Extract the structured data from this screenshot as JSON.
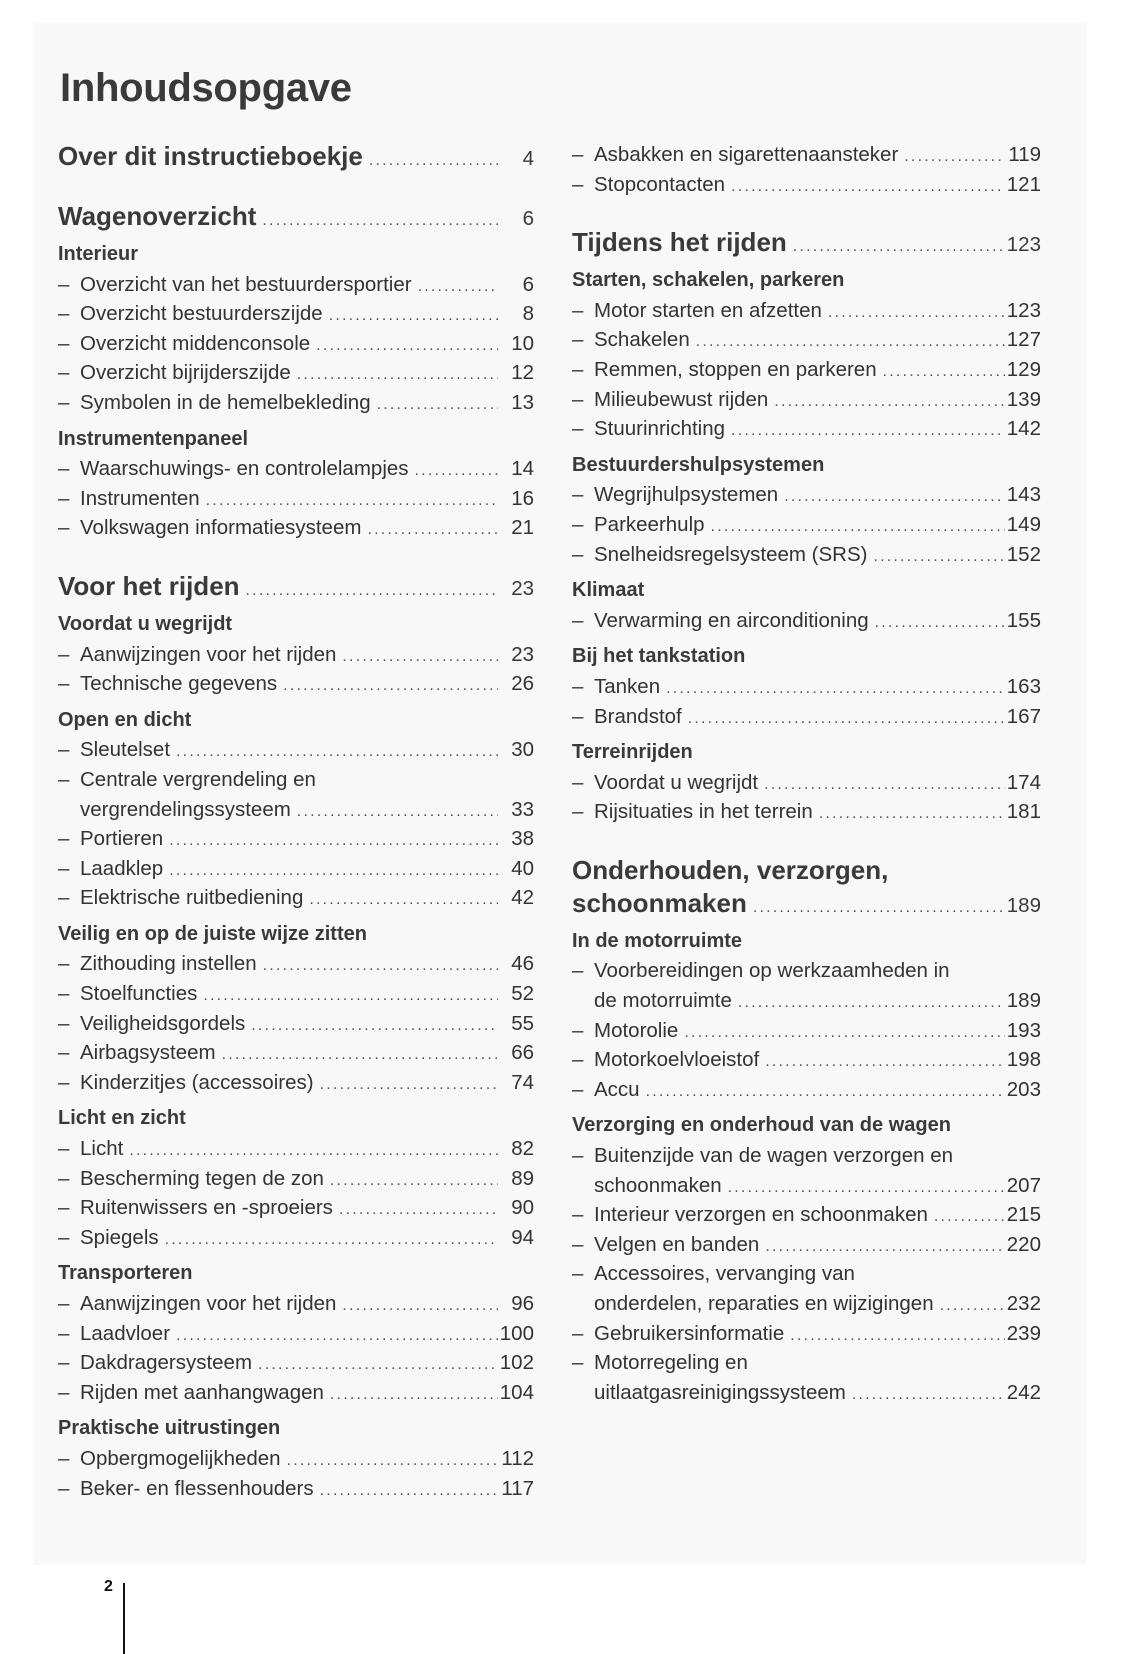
{
  "title": "Inhoudsopgave",
  "page_number": "2",
  "columns": [
    [
      {
        "type": "major",
        "lines": [
          "Over dit instructieboekje"
        ],
        "page": "4"
      },
      {
        "type": "major",
        "lines": [
          "Wagenoverzicht"
        ],
        "page": "6"
      },
      {
        "type": "sub",
        "text": "Interieur"
      },
      {
        "type": "item",
        "lines": [
          "Overzicht van het bestuurdersportier"
        ],
        "page": "6"
      },
      {
        "type": "item",
        "lines": [
          "Overzicht bestuurderszijde"
        ],
        "page": "8"
      },
      {
        "type": "item",
        "lines": [
          "Overzicht middenconsole"
        ],
        "page": "10"
      },
      {
        "type": "item",
        "lines": [
          "Overzicht bijrijderszijde"
        ],
        "page": "12"
      },
      {
        "type": "item",
        "lines": [
          "Symbolen in de hemelbekleding"
        ],
        "page": "13"
      },
      {
        "type": "sub",
        "text": "Instrumentenpaneel"
      },
      {
        "type": "item",
        "lines": [
          "Waarschuwings- en controlelampjes"
        ],
        "page": "14"
      },
      {
        "type": "item",
        "lines": [
          "Instrumenten"
        ],
        "page": "16"
      },
      {
        "type": "item",
        "lines": [
          "Volkswagen informatiesysteem"
        ],
        "page": "21"
      },
      {
        "type": "major",
        "lines": [
          "Voor het rijden"
        ],
        "page": "23"
      },
      {
        "type": "sub",
        "text": "Voordat u wegrijdt"
      },
      {
        "type": "item",
        "lines": [
          "Aanwijzingen voor het rijden"
        ],
        "page": "23"
      },
      {
        "type": "item",
        "lines": [
          "Technische gegevens"
        ],
        "page": "26"
      },
      {
        "type": "sub",
        "text": "Open en dicht"
      },
      {
        "type": "item",
        "lines": [
          "Sleutelset"
        ],
        "page": "30"
      },
      {
        "type": "item",
        "lines": [
          "Centrale vergrendeling en",
          "vergrendelingssysteem"
        ],
        "page": "33"
      },
      {
        "type": "item",
        "lines": [
          "Portieren"
        ],
        "page": "38"
      },
      {
        "type": "item",
        "lines": [
          "Laadklep"
        ],
        "page": "40"
      },
      {
        "type": "item",
        "lines": [
          "Elektrische ruitbediening"
        ],
        "page": "42"
      },
      {
        "type": "sub",
        "text": "Veilig en op de juiste wijze zitten"
      },
      {
        "type": "item",
        "lines": [
          "Zithouding instellen"
        ],
        "page": "46"
      },
      {
        "type": "item",
        "lines": [
          "Stoelfuncties"
        ],
        "page": "52"
      },
      {
        "type": "item",
        "lines": [
          "Veiligheidsgordels"
        ],
        "page": "55"
      },
      {
        "type": "item",
        "lines": [
          "Airbagsysteem"
        ],
        "page": "66"
      },
      {
        "type": "item",
        "lines": [
          "Kinderzitjes (accessoires)"
        ],
        "page": "74"
      },
      {
        "type": "sub",
        "text": "Licht en zicht"
      },
      {
        "type": "item",
        "lines": [
          "Licht"
        ],
        "page": "82"
      },
      {
        "type": "item",
        "lines": [
          "Bescherming tegen de zon"
        ],
        "page": "89"
      },
      {
        "type": "item",
        "lines": [
          "Ruitenwissers en -sproeiers"
        ],
        "page": "90"
      },
      {
        "type": "item",
        "lines": [
          "Spiegels"
        ],
        "page": "94"
      },
      {
        "type": "sub",
        "text": "Transporteren"
      },
      {
        "type": "item",
        "lines": [
          "Aanwijzingen voor het rijden"
        ],
        "page": "96"
      },
      {
        "type": "item",
        "lines": [
          "Laadvloer"
        ],
        "page": "100"
      },
      {
        "type": "item",
        "lines": [
          "Dakdragersysteem"
        ],
        "page": "102"
      },
      {
        "type": "item",
        "lines": [
          "Rijden met aanhangwagen"
        ],
        "page": "104"
      },
      {
        "type": "sub",
        "text": "Praktische uitrustingen"
      },
      {
        "type": "item",
        "lines": [
          "Opbergmogelijkheden"
        ],
        "page": "112"
      },
      {
        "type": "item",
        "lines": [
          "Beker- en flessenhouders"
        ],
        "page": "117"
      }
    ],
    [
      {
        "type": "item",
        "lines": [
          "Asbakken en sigarettenaansteker"
        ],
        "page": "119"
      },
      {
        "type": "item",
        "lines": [
          "Stopcontacten"
        ],
        "page": "121"
      },
      {
        "type": "major",
        "lines": [
          "Tijdens het rijden"
        ],
        "page": "123"
      },
      {
        "type": "sub",
        "text": "Starten, schakelen, parkeren"
      },
      {
        "type": "item",
        "lines": [
          "Motor starten en afzetten"
        ],
        "page": "123"
      },
      {
        "type": "item",
        "lines": [
          "Schakelen"
        ],
        "page": "127"
      },
      {
        "type": "item",
        "lines": [
          "Remmen, stoppen en parkeren"
        ],
        "page": "129"
      },
      {
        "type": "item",
        "lines": [
          "Milieubewust rijden"
        ],
        "page": "139"
      },
      {
        "type": "item",
        "lines": [
          "Stuurinrichting"
        ],
        "page": "142"
      },
      {
        "type": "sub",
        "text": "Bestuurdershulpsystemen"
      },
      {
        "type": "item",
        "lines": [
          "Wegrijhulpsystemen"
        ],
        "page": "143"
      },
      {
        "type": "item",
        "lines": [
          "Parkeerhulp"
        ],
        "page": "149"
      },
      {
        "type": "item",
        "lines": [
          "Snelheidsregelsysteem (SRS)"
        ],
        "page": "152"
      },
      {
        "type": "sub",
        "text": "Klimaat"
      },
      {
        "type": "item",
        "lines": [
          "Verwarming en airconditioning"
        ],
        "page": "155"
      },
      {
        "type": "sub",
        "text": "Bij het tankstation"
      },
      {
        "type": "item",
        "lines": [
          "Tanken"
        ],
        "page": "163"
      },
      {
        "type": "item",
        "lines": [
          "Brandstof"
        ],
        "page": "167"
      },
      {
        "type": "sub",
        "text": "Terreinrijden"
      },
      {
        "type": "item",
        "lines": [
          "Voordat u wegrijdt"
        ],
        "page": "174"
      },
      {
        "type": "item",
        "lines": [
          "Rijsituaties in het terrein"
        ],
        "page": "181"
      },
      {
        "type": "major",
        "lines": [
          "Onderhouden, verzorgen,",
          "schoonmaken"
        ],
        "page": "189"
      },
      {
        "type": "sub",
        "text": "In de motorruimte"
      },
      {
        "type": "item",
        "lines": [
          "Voorbereidingen op werkzaamheden in",
          "de motorruimte"
        ],
        "page": "189"
      },
      {
        "type": "item",
        "lines": [
          "Motorolie"
        ],
        "page": "193"
      },
      {
        "type": "item",
        "lines": [
          "Motorkoelvloeistof"
        ],
        "page": "198"
      },
      {
        "type": "item",
        "lines": [
          "Accu"
        ],
        "page": "203"
      },
      {
        "type": "sub",
        "text": "Verzorging en onderhoud van de wagen"
      },
      {
        "type": "item",
        "lines": [
          "Buitenzijde van de wagen verzorgen en",
          "schoonmaken"
        ],
        "page": "207"
      },
      {
        "type": "item",
        "lines": [
          "Interieur verzorgen en schoonmaken"
        ],
        "page": "215"
      },
      {
        "type": "item",
        "lines": [
          "Velgen en banden"
        ],
        "page": "220"
      },
      {
        "type": "item",
        "lines": [
          "Accessoires, vervanging van",
          "onderdelen, reparaties en wijzigingen"
        ],
        "page": "232"
      },
      {
        "type": "item",
        "lines": [
          "Gebruikersinformatie"
        ],
        "page": "239"
      },
      {
        "type": "item",
        "lines": [
          "Motorregeling en",
          "uitlaatgasreinigingssysteem"
        ],
        "page": "242"
      }
    ]
  ]
}
